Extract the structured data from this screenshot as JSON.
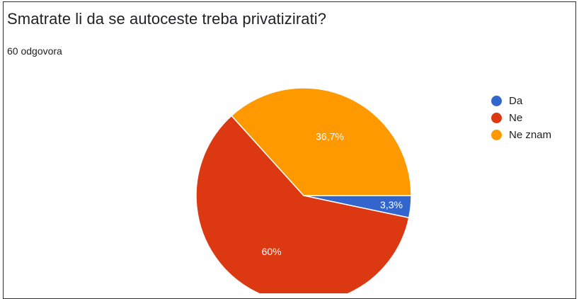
{
  "title": "Smatrate li da se autoceste treba privatizirati?",
  "subtitle": "60 odgovora",
  "chart_data": {
    "type": "pie",
    "title": "Smatrate li da se autoceste treba privatizirati?",
    "categories": [
      "Da",
      "Ne",
      "Ne znam"
    ],
    "values": [
      3.3,
      60,
      36.7
    ],
    "labels": [
      "3,3%",
      "60%",
      "36,7%"
    ],
    "colors": [
      "#3366cc",
      "#dc3912",
      "#ff9900"
    ],
    "legend_position": "right"
  }
}
